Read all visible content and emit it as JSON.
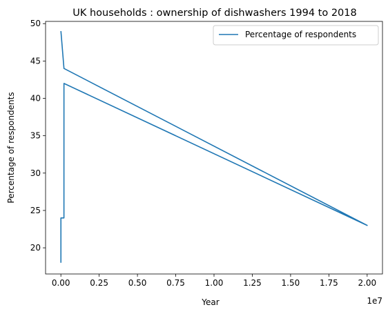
{
  "chart_data": {
    "type": "line",
    "title": "UK households : ownership of dishwashers 1994 to 2018",
    "xlabel": "Year",
    "ylabel": "Percentage of respondents",
    "x_offset_label": "1e7",
    "xlim": [
      -1000000,
      21000000
    ],
    "ylim": [
      16.5,
      50.3
    ],
    "x_ticks": [
      0,
      2500000,
      5000000,
      7500000,
      10000000,
      12500000,
      15000000,
      17500000,
      20000000
    ],
    "x_tick_labels": [
      "0.00",
      "0.25",
      "0.50",
      "0.75",
      "1.00",
      "1.25",
      "1.50",
      "1.75",
      "2.00"
    ],
    "y_ticks": [
      20,
      25,
      30,
      35,
      40,
      45,
      50
    ],
    "y_tick_labels": [
      "20",
      "25",
      "30",
      "35",
      "40",
      "45",
      "50"
    ],
    "legend": {
      "position": "upper right"
    },
    "series": [
      {
        "name": "Percentage of respondents",
        "color": "#1f77b4",
        "x": [
          1994,
          1995,
          1996,
          1997,
          1998,
          1999,
          2000,
          200001,
          200102,
          200203,
          200304,
          200405,
          200506,
          200607,
          200708,
          200809,
          200910,
          201011,
          201112,
          201213,
          20000000,
          201415,
          201516,
          201617,
          201718,
          2018
        ],
        "y": [
          18,
          20,
          20,
          22,
          23,
          23,
          24,
          24,
          25,
          27,
          30,
          33,
          35,
          37,
          37,
          37,
          38,
          40,
          41,
          42,
          23,
          44,
          44,
          44,
          44,
          49
        ]
      }
    ]
  }
}
